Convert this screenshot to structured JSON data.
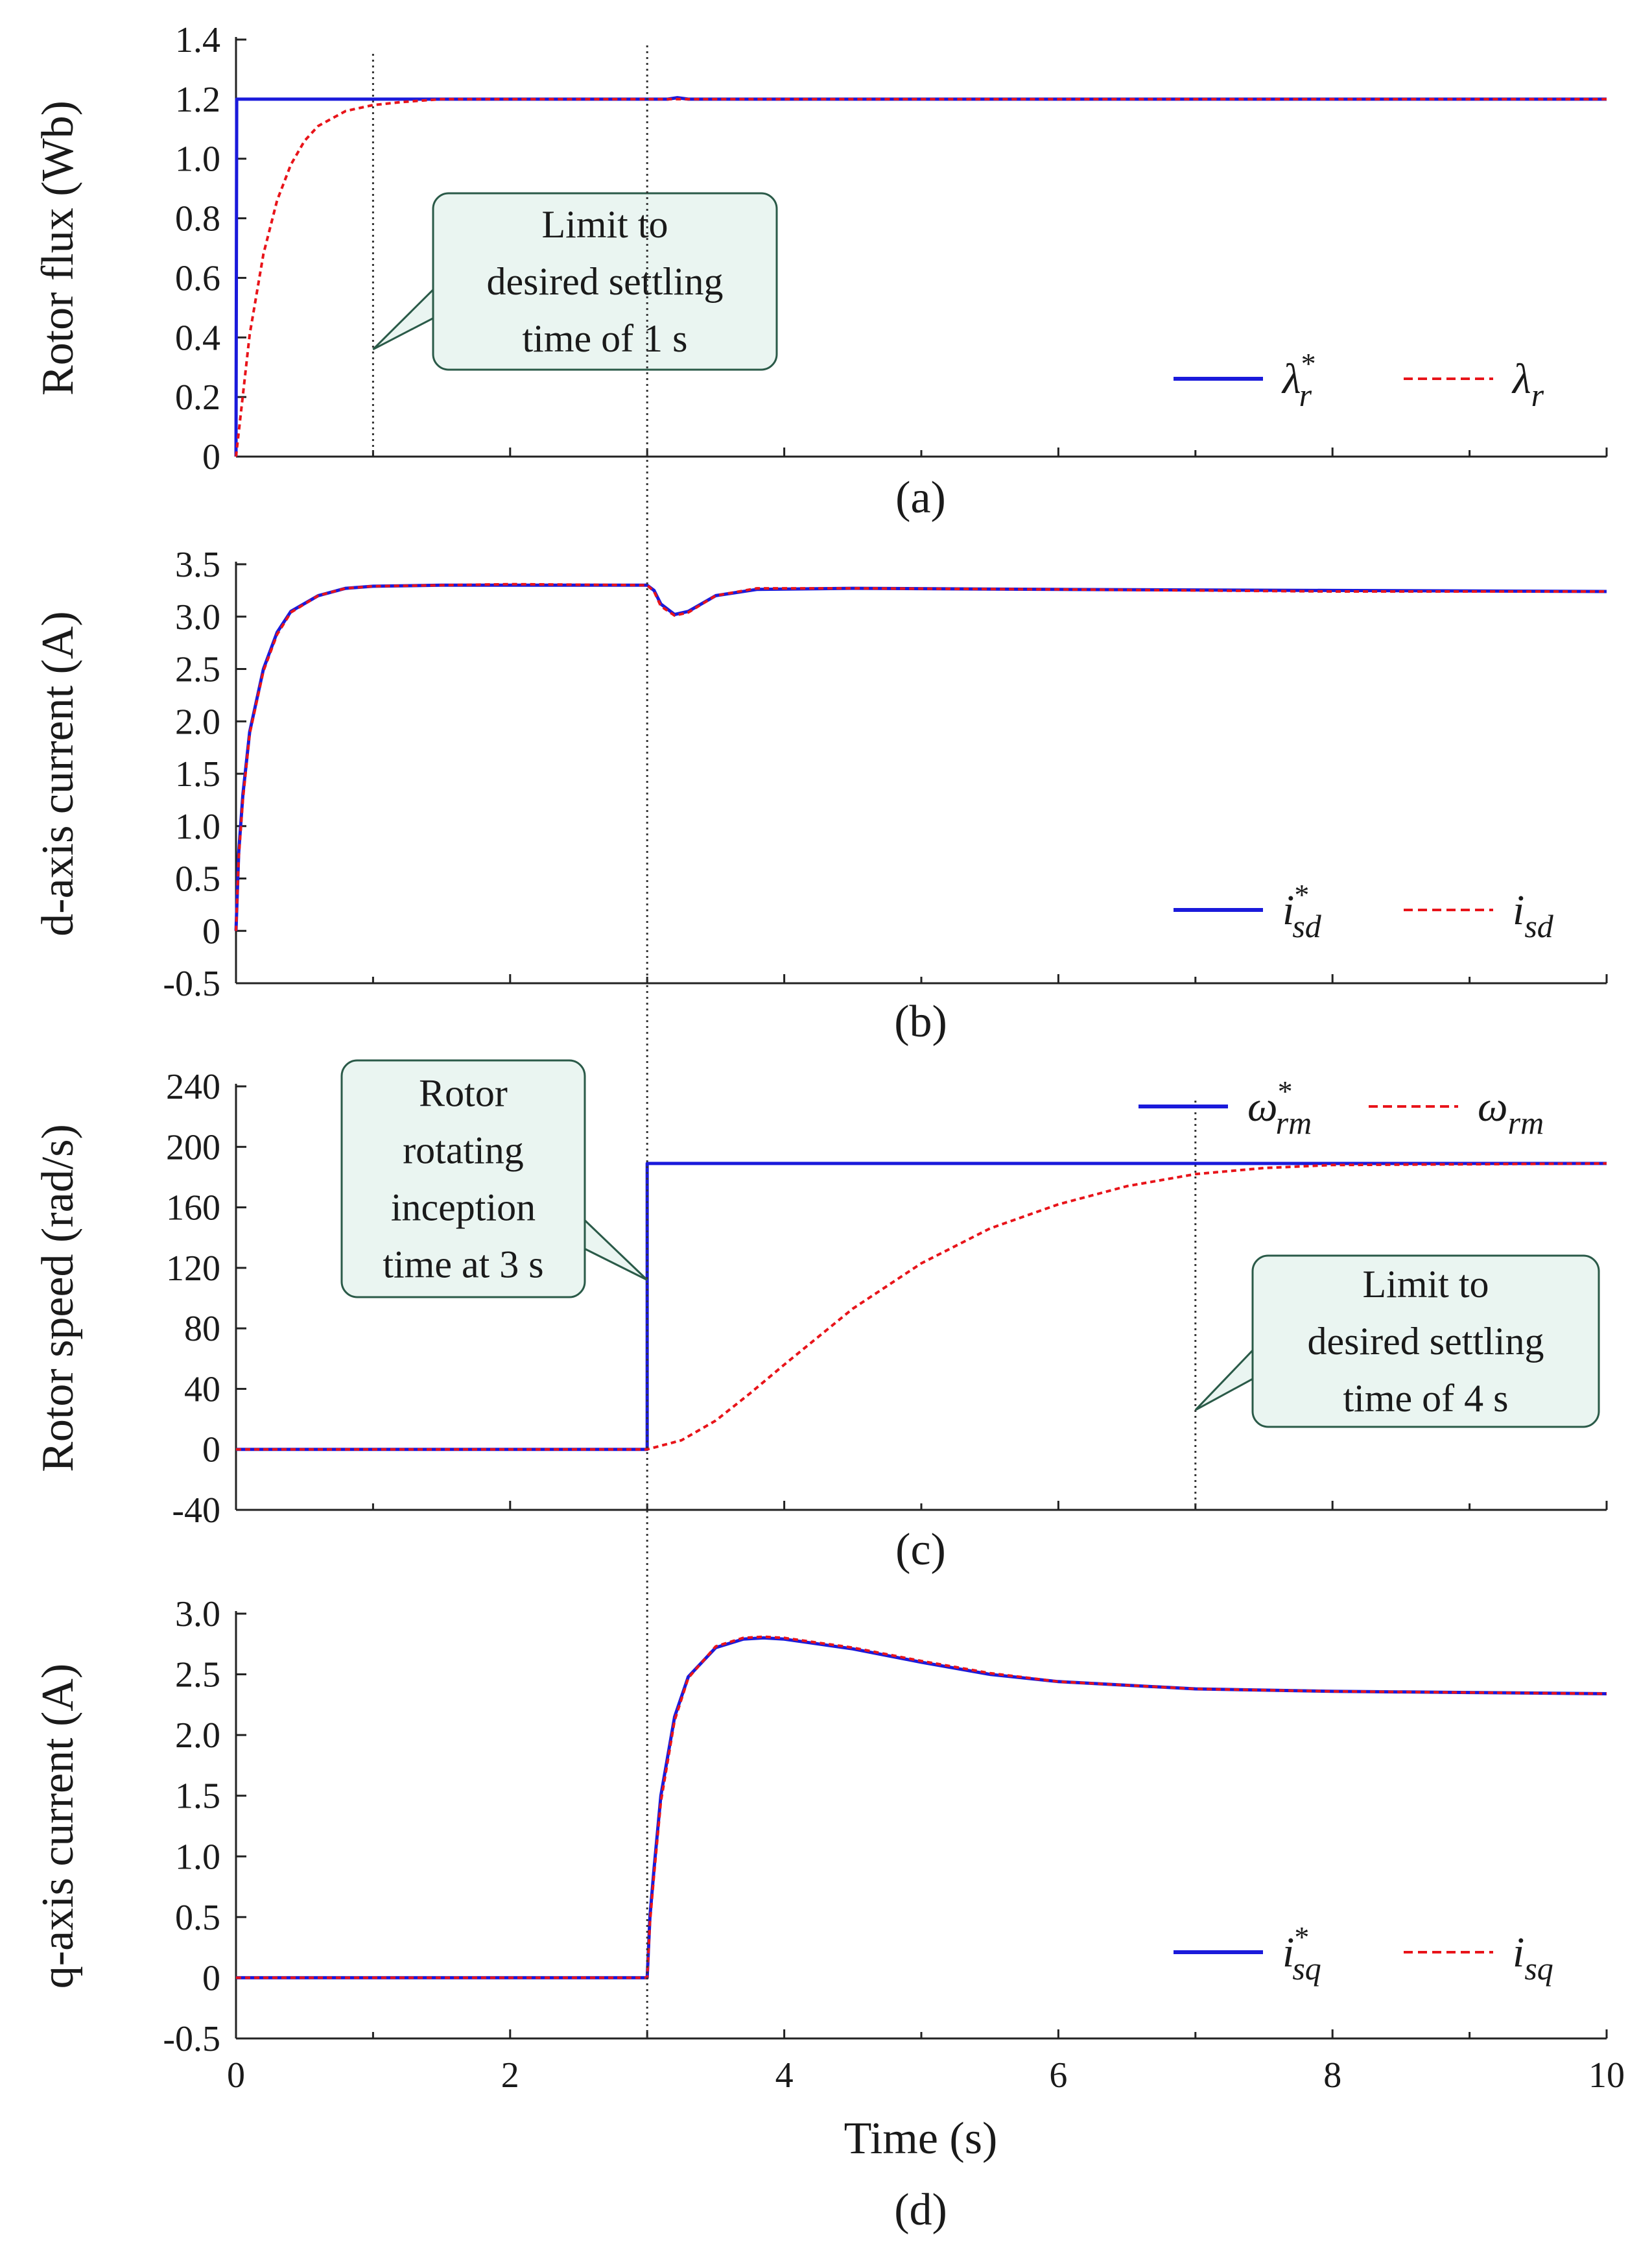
{
  "figure": {
    "x_label": "Time (s)",
    "x_ticks": [
      "0",
      "2",
      "4",
      "6",
      "8",
      "10"
    ]
  },
  "chart_data": [
    {
      "type": "line",
      "caption": "(a)",
      "ylabel": "Rotor flux (Wb)",
      "xlim": [
        0,
        10
      ],
      "ylim": [
        0,
        1.4
      ],
      "yticks": [
        {
          "v": 0,
          "label": "0"
        },
        {
          "v": 0.2,
          "label": "0.2"
        },
        {
          "v": 0.4,
          "label": "0.4"
        },
        {
          "v": 0.6,
          "label": "0.6"
        },
        {
          "v": 0.8,
          "label": "0.8"
        },
        {
          "v": 1.0,
          "label": "1.0"
        },
        {
          "v": 1.2,
          "label": "1.2"
        },
        {
          "v": 1.4,
          "label": "1.4"
        }
      ],
      "legend": [
        {
          "symbol": "λ",
          "sup": "*",
          "sub": "r",
          "color": "#1a1adb",
          "style": "solid"
        },
        {
          "symbol": "λ",
          "sup": "",
          "sub": "r",
          "color": "#e8141a",
          "style": "dashed"
        }
      ],
      "series": [
        {
          "name": "λr* (reference)",
          "color": "#1a1adb",
          "style": "solid",
          "x": [
            0,
            0.005,
            3.15,
            3.22,
            3.3,
            10
          ],
          "y": [
            0,
            1.2,
            1.2,
            1.205,
            1.2,
            1.2
          ]
        },
        {
          "name": "λr (measured)",
          "color": "#e8141a",
          "style": "dashed",
          "x": [
            0,
            0.1,
            0.2,
            0.3,
            0.4,
            0.5,
            0.6,
            0.8,
            1.0,
            1.2,
            1.5,
            2.0,
            3.0,
            10
          ],
          "y": [
            0,
            0.41,
            0.68,
            0.86,
            0.98,
            1.06,
            1.11,
            1.16,
            1.18,
            1.19,
            1.2,
            1.2,
            1.2,
            1.2
          ]
        }
      ],
      "vlines": [
        1,
        3
      ],
      "annotations": [
        {
          "lines": [
            "Limit to",
            "desired settling",
            "time of 1 s"
          ],
          "pointer_to": [
            1.0,
            0.36
          ]
        }
      ]
    },
    {
      "type": "line",
      "caption": "(b)",
      "ylabel": "d-axis current (A)",
      "xlim": [
        0,
        10
      ],
      "ylim": [
        -0.5,
        3.5
      ],
      "yticks": [
        {
          "v": -0.5,
          "label": "-0.5"
        },
        {
          "v": 0,
          "label": "0"
        },
        {
          "v": 0.5,
          "label": "0.5"
        },
        {
          "v": 1.0,
          "label": "1.0"
        },
        {
          "v": 1.5,
          "label": "1.5"
        },
        {
          "v": 2.0,
          "label": "2.0"
        },
        {
          "v": 2.5,
          "label": "2.5"
        },
        {
          "v": 3.0,
          "label": "3.0"
        },
        {
          "v": 3.5,
          "label": "3.5"
        }
      ],
      "legend": [
        {
          "symbol": "i",
          "sup": "*",
          "sub": "sd",
          "color": "#1a1adb",
          "style": "solid"
        },
        {
          "symbol": "i",
          "sup": "",
          "sub": "sd",
          "color": "#e8141a",
          "style": "dashed"
        }
      ],
      "series": [
        {
          "name": "isd* (reference)",
          "color": "#1a1adb",
          "style": "solid",
          "x": [
            0,
            0.02,
            0.05,
            0.1,
            0.2,
            0.3,
            0.4,
            0.6,
            0.8,
            1.0,
            1.5,
            2.0,
            3.0,
            3.05,
            3.1,
            3.2,
            3.3,
            3.5,
            3.8,
            4.5,
            6,
            8,
            10
          ],
          "y": [
            0,
            0.75,
            1.3,
            1.9,
            2.5,
            2.85,
            3.05,
            3.2,
            3.27,
            3.29,
            3.3,
            3.3,
            3.3,
            3.25,
            3.12,
            3.02,
            3.05,
            3.2,
            3.26,
            3.27,
            3.26,
            3.25,
            3.24
          ]
        },
        {
          "name": "isd (measured)",
          "color": "#e8141a",
          "style": "dashed",
          "x": [
            0,
            0.02,
            0.05,
            0.1,
            0.2,
            0.3,
            0.4,
            0.6,
            0.8,
            1.0,
            1.5,
            2.0,
            3.0,
            3.05,
            3.1,
            3.2,
            3.3,
            3.5,
            3.8,
            4.5,
            6,
            8,
            10
          ],
          "y": [
            0,
            0.7,
            1.25,
            1.88,
            2.48,
            2.83,
            3.04,
            3.2,
            3.27,
            3.29,
            3.3,
            3.31,
            3.3,
            3.24,
            3.1,
            3.01,
            3.04,
            3.2,
            3.27,
            3.27,
            3.26,
            3.24,
            3.24
          ]
        }
      ],
      "vlines": [
        3
      ],
      "annotations": []
    },
    {
      "type": "line",
      "caption": "(c)",
      "ylabel": "Rotor speed (rad/s)",
      "xlim": [
        0,
        10
      ],
      "ylim": [
        -40,
        240
      ],
      "yticks": [
        {
          "v": -40,
          "label": "-40"
        },
        {
          "v": 0,
          "label": "0"
        },
        {
          "v": 40,
          "label": "40"
        },
        {
          "v": 80,
          "label": "80"
        },
        {
          "v": 120,
          "label": "120"
        },
        {
          "v": 160,
          "label": "160"
        },
        {
          "v": 200,
          "label": "200"
        },
        {
          "v": 240,
          "label": "240"
        }
      ],
      "legend": [
        {
          "symbol": "ω",
          "sup": "*",
          "sub": "rm",
          "color": "#1a1adb",
          "style": "solid"
        },
        {
          "symbol": "ω",
          "sup": "",
          "sub": "rm",
          "color": "#e8141a",
          "style": "dashed"
        }
      ],
      "series": [
        {
          "name": "ωrm* (reference)",
          "color": "#1a1adb",
          "style": "solid",
          "x": [
            0,
            3,
            3,
            10
          ],
          "y": [
            0,
            0,
            189,
            189
          ]
        },
        {
          "name": "ωrm (measured)",
          "color": "#e8141a",
          "style": "dashed",
          "x": [
            0,
            3,
            3.25,
            3.5,
            3.75,
            4,
            4.5,
            5,
            5.5,
            6,
            6.5,
            7,
            7.5,
            8,
            10
          ],
          "y": [
            0,
            0,
            6,
            19,
            37,
            56,
            93,
            123,
            146,
            162,
            174,
            182,
            186,
            188,
            189
          ]
        }
      ],
      "vlines": [
        3,
        7
      ],
      "annotations": [
        {
          "lines": [
            "Rotor",
            "rotating",
            "inception",
            "time at 3 s"
          ],
          "pointer_to": [
            3.0,
            112
          ]
        },
        {
          "lines": [
            "Limit to",
            "desired settling",
            "time of 4 s"
          ],
          "pointer_to": [
            7.0,
            26
          ]
        }
      ]
    },
    {
      "type": "line",
      "caption": "(d)",
      "ylabel": "q-axis current (A)",
      "xlabel": "Time (s)",
      "xlim": [
        0,
        10
      ],
      "ylim": [
        -0.5,
        3.0
      ],
      "yticks": [
        {
          "v": -0.5,
          "label": "-0.5"
        },
        {
          "v": 0,
          "label": "0"
        },
        {
          "v": 0.5,
          "label": "0.5"
        },
        {
          "v": 1.0,
          "label": "1.0"
        },
        {
          "v": 1.5,
          "label": "1.5"
        },
        {
          "v": 2.0,
          "label": "2.0"
        },
        {
          "v": 2.5,
          "label": "2.5"
        },
        {
          "v": 3.0,
          "label": "3.0"
        }
      ],
      "legend": [
        {
          "symbol": "i",
          "sup": "*",
          "sub": "sq",
          "color": "#1a1adb",
          "style": "solid"
        },
        {
          "symbol": "i",
          "sup": "",
          "sub": "sq",
          "color": "#e8141a",
          "style": "dashed"
        }
      ],
      "series": [
        {
          "name": "isq* (reference)",
          "color": "#1a1adb",
          "style": "solid",
          "x": [
            0,
            3,
            3.02,
            3.05,
            3.1,
            3.2,
            3.3,
            3.5,
            3.7,
            3.85,
            4,
            4.5,
            5,
            5.5,
            6,
            7,
            8,
            9,
            10
          ],
          "y": [
            0,
            0,
            0.5,
            0.9,
            1.5,
            2.15,
            2.48,
            2.72,
            2.79,
            2.8,
            2.79,
            2.71,
            2.6,
            2.5,
            2.44,
            2.38,
            2.36,
            2.35,
            2.34
          ]
        },
        {
          "name": "isq (measured)",
          "color": "#e8141a",
          "style": "dashed",
          "x": [
            0,
            3,
            3.02,
            3.05,
            3.1,
            3.2,
            3.3,
            3.5,
            3.7,
            3.85,
            4,
            4.5,
            5,
            5.5,
            6,
            7,
            8,
            9,
            10
          ],
          "y": [
            0,
            0,
            0.45,
            0.85,
            1.45,
            2.12,
            2.47,
            2.73,
            2.8,
            2.81,
            2.8,
            2.72,
            2.61,
            2.51,
            2.44,
            2.38,
            2.36,
            2.35,
            2.34
          ]
        }
      ],
      "vlines": [
        3
      ],
      "annotations": []
    }
  ]
}
